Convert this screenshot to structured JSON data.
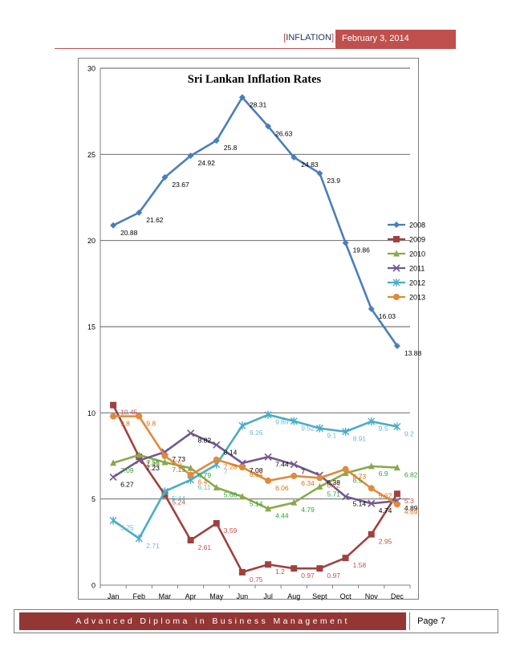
{
  "header": {
    "bracket_open": "[",
    "section": "INFLATION",
    "bracket_close": "]",
    "date": "February 3, 2014"
  },
  "footer": {
    "program": "Advanced Diploma in Business Management",
    "page": "Page 7"
  },
  "chart_data": {
    "type": "line",
    "title": "Sri Lankan Inflation Rates",
    "xlabel": "",
    "ylabel": "",
    "categories": [
      "Jan",
      "Feb",
      "Mar",
      "Apr",
      "May",
      "Jun",
      "Jul",
      "Aug",
      "Sept",
      "Oct",
      "Nov",
      "Dec"
    ],
    "ylim": [
      0,
      30
    ],
    "yticks": [
      0,
      5,
      10,
      15,
      20,
      25,
      30
    ],
    "grid": true,
    "legend_position": "right",
    "series": [
      {
        "name": "2008",
        "color": "#4a7ebb",
        "label_color": "#000000",
        "marker": "diamond",
        "values": [
          20.88,
          21.62,
          23.67,
          24.92,
          25.8,
          28.31,
          26.63,
          24.83,
          23.9,
          19.86,
          16.03,
          13.88
        ],
        "labels": [
          "20.88",
          "21.62",
          "23.67",
          "24.92",
          "25.8",
          "28.31",
          "26.63",
          "24.83",
          "23.9",
          "19.86",
          "16.03",
          "13.88"
        ]
      },
      {
        "name": "2009",
        "color": "#a0413e",
        "label_color": "#c0504d",
        "marker": "square",
        "values": [
          10.45,
          7.45,
          5.24,
          2.61,
          3.59,
          0.75,
          1.2,
          0.97,
          0.97,
          1.58,
          2.95,
          5.3
        ],
        "labels": [
          "10.45",
          "7.45",
          "5.24",
          "2.61",
          "3.59",
          "0.75",
          "1.2",
          "0.97",
          "0.97",
          "1.58",
          "2.95",
          "5.3"
        ]
      },
      {
        "name": "2010",
        "color": "#8aa94a",
        "label_color": "#2aa832",
        "marker": "triangle",
        "values": [
          7.09,
          7.55,
          7.13,
          6.79,
          5.66,
          5.14,
          4.44,
          4.79,
          5.71,
          6.5,
          6.9,
          6.82
        ],
        "labels": [
          "7.09",
          "7.55",
          "7.13",
          "6.79",
          "5.66",
          "5.14",
          "4.44",
          "4.79",
          "5.71",
          "6.5",
          "6.9",
          "6.82"
        ]
      },
      {
        "name": "2011",
        "color": "#71588f",
        "label_color": "#000000",
        "marker": "x",
        "values": [
          6.27,
          7.23,
          7.73,
          8.82,
          8.14,
          7.08,
          7.44,
          7.0,
          6.38,
          5.14,
          4.74,
          4.89
        ],
        "labels": [
          "6.27",
          "7.23",
          "7.73",
          "8.82",
          "8.14",
          "7.08",
          "7.44",
          "7",
          "6.38",
          "5.14",
          "4.74",
          "4.89"
        ]
      },
      {
        "name": "2012",
        "color": "#4aacc6",
        "label_color": "#6fb8cc",
        "marker": "star",
        "values": [
          3.75,
          2.71,
          5.44,
          6.11,
          7.0,
          9.26,
          9.89,
          9.52,
          9.1,
          8.91,
          9.5,
          9.2
        ],
        "labels": [
          "3.75",
          "2.71",
          "5.44",
          "6.11",
          "7",
          "9.26",
          "9.89",
          "9.52",
          "9.1",
          "8.91",
          "9.5",
          "9.2"
        ]
      },
      {
        "name": "2013",
        "color": "#e08a3c",
        "label_color": "#e46c0a",
        "marker": "circle",
        "values": [
          9.8,
          9.8,
          7.5,
          6.4,
          7.28,
          6.84,
          6.06,
          6.34,
          6.22,
          6.73,
          5.62,
          4.69
        ],
        "labels": [
          "9.8",
          "9.8",
          "7.5",
          "6.4",
          "7.28",
          "6.84",
          "6.06",
          "6.34",
          "6.22",
          "6.73",
          "5.62",
          "4.69"
        ]
      }
    ]
  }
}
